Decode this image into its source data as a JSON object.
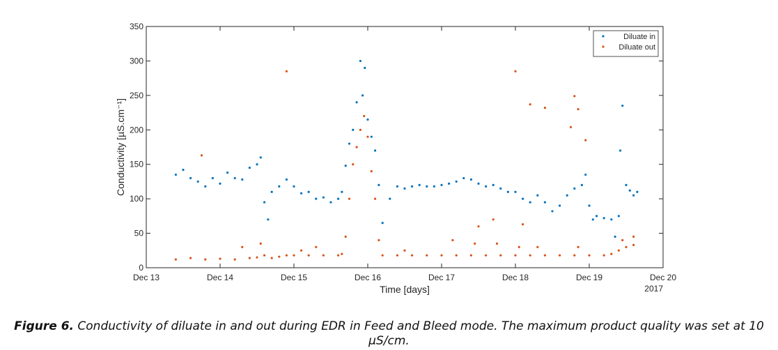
{
  "figure_caption": {
    "label": "Figure 6.",
    "text": "Conductivity of diluate in and out during EDR in Feed and Bleed mode. The maximum product quality was set at 10 µS/cm."
  },
  "chart_data": {
    "type": "scatter",
    "xlabel": "Time [days]",
    "ylabel": "Conductivity [µS.cm⁻¹]",
    "x_year_label": "2017",
    "x_unit": "days (Dec 13 = 13)",
    "xlim": [
      13,
      20
    ],
    "ylim": [
      0,
      350
    ],
    "x_ticks": [
      {
        "value": 13,
        "label": "Dec 13"
      },
      {
        "value": 14,
        "label": "Dec 14"
      },
      {
        "value": 15,
        "label": "Dec 15"
      },
      {
        "value": 16,
        "label": "Dec 16"
      },
      {
        "value": 17,
        "label": "Dec 17"
      },
      {
        "value": 18,
        "label": "Dec 18"
      },
      {
        "value": 19,
        "label": "Dec 19"
      },
      {
        "value": 20,
        "label": "Dec 20"
      }
    ],
    "y_ticks": [
      0,
      50,
      100,
      150,
      200,
      250,
      300,
      350
    ],
    "legend_position": "top-right",
    "grid": false,
    "series": [
      {
        "name": "Diluate in",
        "color": "#0072BD",
        "points": [
          [
            13.4,
            135
          ],
          [
            13.5,
            142
          ],
          [
            13.6,
            130
          ],
          [
            13.7,
            125
          ],
          [
            13.8,
            118
          ],
          [
            13.9,
            130
          ],
          [
            14.0,
            122
          ],
          [
            14.1,
            138
          ],
          [
            14.2,
            130
          ],
          [
            14.3,
            128
          ],
          [
            14.4,
            145
          ],
          [
            14.5,
            150
          ],
          [
            14.55,
            160
          ],
          [
            14.6,
            95
          ],
          [
            14.65,
            70
          ],
          [
            14.7,
            110
          ],
          [
            14.8,
            118
          ],
          [
            14.9,
            128
          ],
          [
            15.0,
            118
          ],
          [
            15.1,
            108
          ],
          [
            15.2,
            110
          ],
          [
            15.3,
            100
          ],
          [
            15.4,
            102
          ],
          [
            15.5,
            95
          ],
          [
            15.6,
            100
          ],
          [
            15.65,
            110
          ],
          [
            15.7,
            148
          ],
          [
            15.75,
            180
          ],
          [
            15.8,
            200
          ],
          [
            15.85,
            240
          ],
          [
            15.9,
            300
          ],
          [
            15.93,
            250
          ],
          [
            15.96,
            290
          ],
          [
            16.0,
            215
          ],
          [
            16.05,
            190
          ],
          [
            16.1,
            170
          ],
          [
            16.15,
            120
          ],
          [
            16.2,
            65
          ],
          [
            16.3,
            100
          ],
          [
            16.4,
            118
          ],
          [
            16.5,
            115
          ],
          [
            16.6,
            118
          ],
          [
            16.7,
            120
          ],
          [
            16.8,
            118
          ],
          [
            16.9,
            118
          ],
          [
            17.0,
            120
          ],
          [
            17.1,
            122
          ],
          [
            17.2,
            125
          ],
          [
            17.3,
            130
          ],
          [
            17.4,
            128
          ],
          [
            17.5,
            122
          ],
          [
            17.6,
            118
          ],
          [
            17.7,
            120
          ],
          [
            17.8,
            115
          ],
          [
            17.9,
            110
          ],
          [
            18.0,
            110
          ],
          [
            18.1,
            100
          ],
          [
            18.2,
            95
          ],
          [
            18.3,
            105
          ],
          [
            18.4,
            95
          ],
          [
            18.5,
            82
          ],
          [
            18.6,
            90
          ],
          [
            18.7,
            105
          ],
          [
            18.8,
            115
          ],
          [
            18.9,
            120
          ],
          [
            18.95,
            135
          ],
          [
            19.0,
            90
          ],
          [
            19.05,
            70
          ],
          [
            19.1,
            75
          ],
          [
            19.2,
            72
          ],
          [
            19.3,
            70
          ],
          [
            19.35,
            45
          ],
          [
            19.4,
            75
          ],
          [
            19.42,
            170
          ],
          [
            19.45,
            235
          ],
          [
            19.5,
            120
          ],
          [
            19.55,
            112
          ],
          [
            19.6,
            105
          ],
          [
            19.65,
            110
          ]
        ]
      },
      {
        "name": "Diluate out",
        "color": "#D95319",
        "points": [
          [
            13.4,
            12
          ],
          [
            13.6,
            14
          ],
          [
            13.8,
            12
          ],
          [
            14.0,
            13
          ],
          [
            14.2,
            12
          ],
          [
            14.4,
            14
          ],
          [
            14.5,
            15
          ],
          [
            14.6,
            18
          ],
          [
            14.7,
            14
          ],
          [
            14.8,
            16
          ],
          [
            14.9,
            18
          ],
          [
            15.0,
            18
          ],
          [
            15.2,
            18
          ],
          [
            15.4,
            18
          ],
          [
            15.6,
            18
          ],
          [
            15.65,
            20
          ],
          [
            15.7,
            45
          ],
          [
            15.75,
            100
          ],
          [
            15.8,
            150
          ],
          [
            15.85,
            175
          ],
          [
            15.9,
            200
          ],
          [
            15.95,
            220
          ],
          [
            16.0,
            190
          ],
          [
            16.05,
            140
          ],
          [
            16.1,
            100
          ],
          [
            16.15,
            40
          ],
          [
            16.2,
            18
          ],
          [
            16.4,
            18
          ],
          [
            16.6,
            18
          ],
          [
            16.8,
            18
          ],
          [
            17.0,
            18
          ],
          [
            17.2,
            18
          ],
          [
            17.4,
            18
          ],
          [
            17.6,
            18
          ],
          [
            17.8,
            18
          ],
          [
            18.0,
            18
          ],
          [
            18.2,
            18
          ],
          [
            18.4,
            18
          ],
          [
            18.6,
            18
          ],
          [
            18.8,
            18
          ],
          [
            19.0,
            18
          ],
          [
            19.2,
            18
          ],
          [
            19.3,
            20
          ],
          [
            19.4,
            25
          ],
          [
            19.5,
            30
          ],
          [
            19.6,
            33
          ],
          [
            14.3,
            30
          ],
          [
            14.55,
            35
          ],
          [
            15.1,
            25
          ],
          [
            16.5,
            25
          ],
          [
            17.15,
            40
          ],
          [
            17.45,
            35
          ],
          [
            17.75,
            35
          ],
          [
            18.05,
            30
          ],
          [
            18.3,
            30
          ],
          [
            18.85,
            30
          ],
          [
            19.45,
            40
          ],
          [
            19.6,
            45
          ],
          [
            14.9,
            285
          ],
          [
            18.0,
            285
          ],
          [
            18.2,
            237
          ],
          [
            18.4,
            232
          ],
          [
            18.8,
            249
          ],
          [
            18.85,
            230
          ],
          [
            18.75,
            204
          ],
          [
            18.95,
            185
          ],
          [
            13.75,
            163
          ],
          [
            17.5,
            60
          ],
          [
            17.7,
            70
          ],
          [
            18.1,
            63
          ],
          [
            15.3,
            30
          ]
        ]
      }
    ]
  }
}
